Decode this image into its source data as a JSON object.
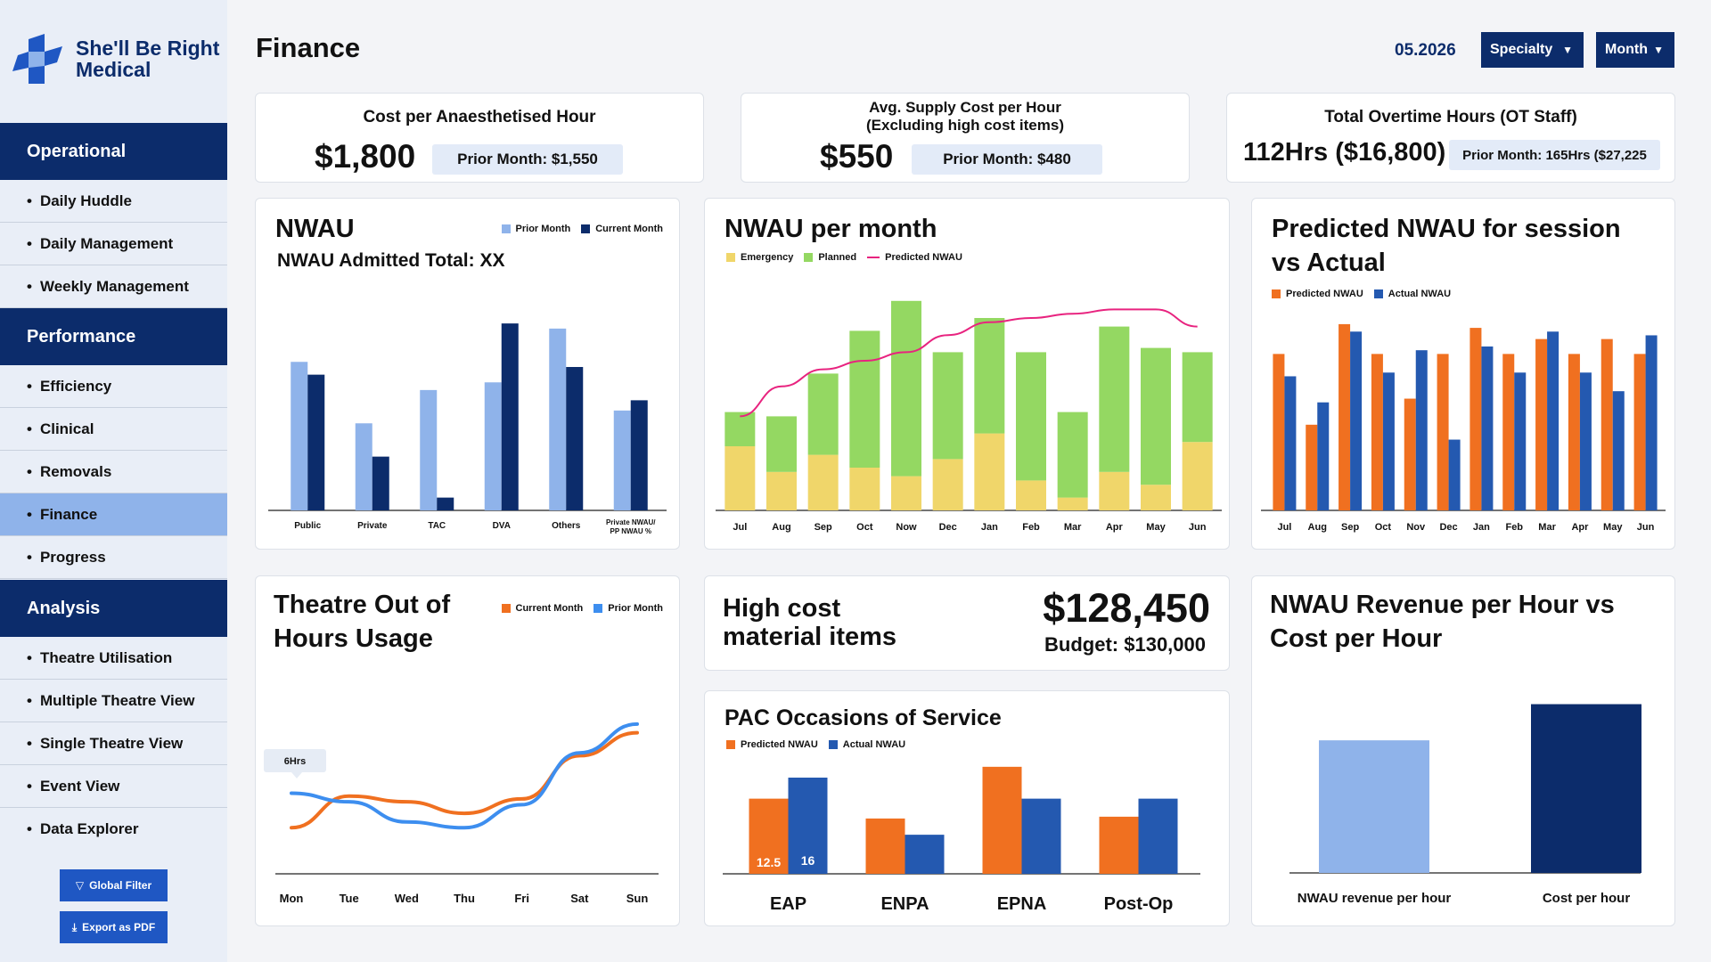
{
  "brand": {
    "line1": "She'll Be Right",
    "line2": "Medical"
  },
  "sidebar": {
    "sections": [
      {
        "label": "Operational",
        "items": [
          "Daily Huddle",
          "Daily Management",
          "Weekly Management"
        ]
      },
      {
        "label": "Performance",
        "items": [
          "Efficiency",
          "Clinical",
          "Removals",
          "Finance",
          "Progress"
        ]
      },
      {
        "label": "Analysis",
        "items": [
          "Theatre Utilisation",
          "Multiple Theatre View",
          "Single Theatre View",
          "Event View",
          "Data Explorer"
        ]
      }
    ],
    "active_item": "Finance",
    "global_filter": "Global Filter",
    "export_pdf": "Export as PDF"
  },
  "header": {
    "title": "Finance",
    "period": "05.2026",
    "specialty": "Specialty",
    "month": "Month"
  },
  "kpis": {
    "cost_per_hour": {
      "title": "Cost per Anaesthetised Hour",
      "value": "$1,800",
      "prior": "Prior Month: $1,550"
    },
    "supply_cost": {
      "title_line1": "Avg. Supply Cost per Hour",
      "title_line2": "(Excluding high cost items)",
      "value": "$550",
      "prior": "Prior Month: $480"
    },
    "overtime": {
      "title": "Total Overtime Hours (OT Staff)",
      "value": "112Hrs ($16,800)",
      "prior": "Prior Month: 165Hrs ($27,225"
    }
  },
  "nwau": {
    "title": "NWAU",
    "subtitle": "NWAU Admitted Total: XX"
  },
  "nwau_month": {
    "title": "NWAU per month"
  },
  "predicted": {
    "title_line1": "Predicted NWAU for session",
    "title_line2": "vs Actual"
  },
  "theatre": {
    "title_line1": "Theatre Out of",
    "title_line2": "Hours Usage",
    "tooltip": "6Hrs"
  },
  "high_cost": {
    "title_line1": "High cost",
    "title_line2": "material items",
    "value": "$128,450",
    "budget": "Budget: $130,000"
  },
  "pac": {
    "title": "PAC Occasions of Service"
  },
  "revenue": {
    "title_line1": "NWAU Revenue per Hour vs",
    "title_line2": "Cost per Hour"
  },
  "colors": {
    "navy": "#0c2c6b",
    "light_blue": "#8fb3ea",
    "orange": "#f07020",
    "blue": "#2459b0",
    "yellow": "#f0d66a",
    "green": "#94d862",
    "pink": "#e8237f",
    "bright_blue": "#3d8eef"
  },
  "chart_data": [
    {
      "id": "nwau",
      "type": "bar",
      "categories": [
        "Public",
        "Private",
        "TAC",
        "DVA",
        "Others",
        "Private NWAU/ PP NWAU %"
      ],
      "series": [
        {
          "name": "Prior Month",
          "values": [
            58,
            34,
            47,
            50,
            71,
            39
          ]
        },
        {
          "name": "Current Month",
          "values": [
            53,
            21,
            5,
            73,
            56,
            43
          ]
        }
      ],
      "ylim": [
        0,
        80
      ],
      "legend": "top-right"
    },
    {
      "id": "nwau_month",
      "type": "bar",
      "stacked": true,
      "categories": [
        "Jul",
        "Aug",
        "Sep",
        "Oct",
        "Now",
        "Dec",
        "Jan",
        "Feb",
        "Mar",
        "Apr",
        "May",
        "Jun"
      ],
      "series": [
        {
          "name": "Emergency",
          "values": [
            15,
            9,
            13,
            10,
            8,
            12,
            18,
            7,
            3,
            9,
            6,
            16
          ]
        },
        {
          "name": "Planned",
          "values": [
            8,
            13,
            19,
            32,
            41,
            25,
            27,
            30,
            20,
            34,
            32,
            21
          ]
        }
      ],
      "line": {
        "name": "Predicted NWAU",
        "values": [
          22,
          29,
          33,
          35,
          37,
          41,
          44,
          45,
          46,
          47,
          47,
          43
        ]
      },
      "ylim": [
        0,
        50
      ],
      "legend": "top-left"
    },
    {
      "id": "predicted",
      "type": "bar",
      "categories": [
        "Jul",
        "Aug",
        "Sep",
        "Oct",
        "Nov",
        "Dec",
        "Jan",
        "Feb",
        "Mar",
        "Apr",
        "May",
        "Jun"
      ],
      "series": [
        {
          "name": "Predicted NWAU",
          "values": [
            42,
            23,
            50,
            42,
            30,
            42,
            49,
            42,
            46,
            42,
            46,
            42
          ]
        },
        {
          "name": "Actual NWAU",
          "values": [
            36,
            29,
            48,
            37,
            43,
            19,
            44,
            37,
            48,
            37,
            32,
            47
          ]
        }
      ],
      "ylim": [
        0,
        55
      ],
      "legend": "top-left"
    },
    {
      "id": "theatre",
      "type": "line",
      "categories": [
        "Mon",
        "Tue",
        "Wed",
        "Thu",
        "Fri",
        "Sat",
        "Sun"
      ],
      "series": [
        {
          "name": "Current Month",
          "values": [
            1.6,
            2.7,
            2.5,
            2.1,
            2.6,
            4.1,
            4.9
          ]
        },
        {
          "name": "Prior Month",
          "values": [
            2.8,
            2.5,
            1.8,
            1.6,
            2.4,
            4.2,
            5.2
          ]
        }
      ],
      "ylim": [
        0,
        6
      ],
      "legend": "top-right"
    },
    {
      "id": "pac",
      "type": "bar",
      "categories": [
        "EAP",
        "ENPA",
        "EPNA",
        "Post-Op"
      ],
      "series": [
        {
          "name": "Predicted NWAU",
          "values": [
            12.5,
            9.2,
            17.8,
            9.5
          ]
        },
        {
          "name": "Actual NWAU",
          "values": [
            16,
            6.5,
            12.5,
            12.5
          ]
        }
      ],
      "data_labels": [
        "12.5",
        "16"
      ],
      "ylim": [
        0,
        20
      ],
      "legend": "top-left"
    },
    {
      "id": "revenue",
      "type": "bar",
      "categories": [
        "NWAU revenue per hour",
        "Cost per hour"
      ],
      "values": [
        1320,
        1680
      ],
      "ylim": [
        0,
        1800
      ]
    }
  ]
}
